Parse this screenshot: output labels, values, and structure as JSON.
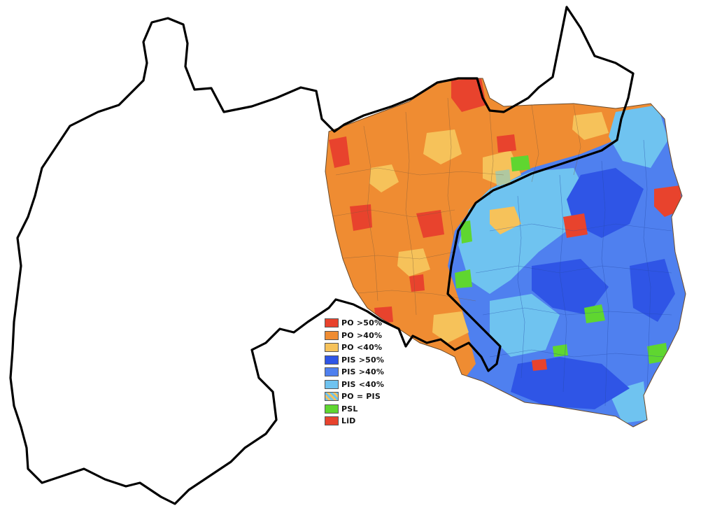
{
  "legend": [
    {
      "label": "PO >50%",
      "color": "#e8432d",
      "hatched": false
    },
    {
      "label": "PO >40%",
      "color": "#ef8c32",
      "hatched": false
    },
    {
      "label": "PO <40%",
      "color": "#f6c25a",
      "hatched": false
    },
    {
      "label": "PIS >50%",
      "color": "#2f55e6",
      "hatched": false
    },
    {
      "label": "PIS >40%",
      "color": "#4f80ef",
      "hatched": false
    },
    {
      "label": "PIS <40%",
      "color": "#6fc3f0",
      "hatched": false
    },
    {
      "label": "PO = PIS",
      "color": "#b0c8a0",
      "hatched": true
    },
    {
      "label": "PSL",
      "color": "#5fd630",
      "hatched": false
    },
    {
      "label": "LiD",
      "color": "#e8432d",
      "hatched": false
    }
  ],
  "colors": {
    "po_strong": "#e8432d",
    "po_mid": "#ef8c32",
    "po_weak": "#f6c25a",
    "pis_strong": "#2f55e6",
    "pis_mid": "#4f80ef",
    "pis_weak": "#6fc3f0",
    "psl": "#5fd630",
    "lid": "#e8432d",
    "border_outline": "#000000"
  }
}
